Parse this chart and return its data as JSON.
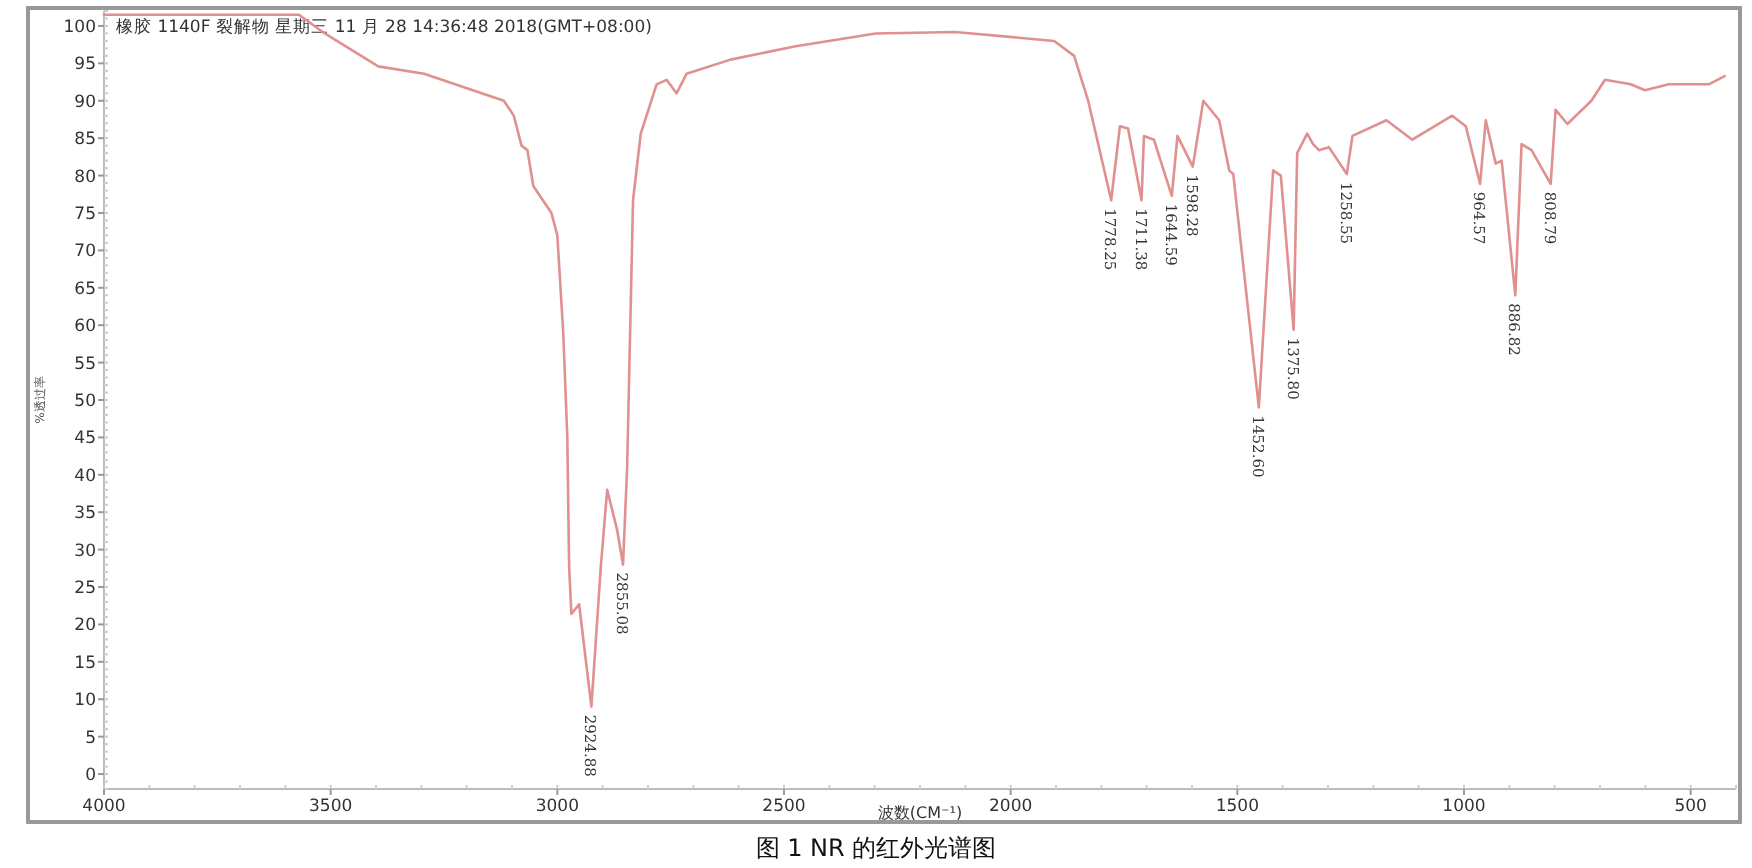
{
  "chart_data": {
    "type": "line",
    "title": "图 1 NR 的红外光谱图",
    "subtitle": "橡胶 1140F 裂解物 星期三 11 月 28 14:36:48 2018(GMT+08:00)",
    "xlabel": "波数(CM⁻¹)",
    "ylabel": "%透过率",
    "xlim": [
      4000,
      400
    ],
    "xticks": [
      4000,
      3500,
      3000,
      2500,
      2000,
      1500,
      1000,
      500
    ],
    "ylim": [
      -2,
      102
    ],
    "yticks": [
      0,
      5,
      10,
      15,
      20,
      25,
      30,
      35,
      40,
      45,
      50,
      55,
      60,
      65,
      70,
      75,
      80,
      85,
      90,
      95,
      100
    ],
    "grid": false,
    "marker": "none",
    "line_style": "solid",
    "series": [
      {
        "color": "#e0908f",
        "x": [
          4000,
          3570,
          3513,
          3395,
          3294,
          3118,
          3096,
          3079,
          3066,
          3053,
          3013,
          3000,
          2987,
          2978,
          2974,
          2969,
          2952,
          2924.88,
          2904,
          2890,
          2868,
          2855.08,
          2846,
          2833,
          2816,
          2781,
          2759,
          2737,
          2715,
          2618,
          2474,
          2298,
          2123,
          1904,
          1860,
          1829,
          1778.25,
          1759,
          1741,
          1711.38,
          1706,
          1684,
          1644.59,
          1632,
          1598.28,
          1575,
          1540,
          1518,
          1509,
          1452.6,
          1421,
          1404,
          1375.8,
          1368,
          1346,
          1333,
          1320,
          1298,
          1258.55,
          1246,
          1171,
          1114,
          1026,
          996,
          964.57,
          952,
          930,
          917,
          886.82,
          873,
          851,
          808.79,
          798,
          772,
          719,
          689,
          632,
          601,
          548,
          460,
          425
        ],
        "values": [
          101.5,
          101.5,
          99,
          94.6,
          93.6,
          90,
          88,
          84,
          83.4,
          78.6,
          75,
          72,
          59,
          45,
          27.8,
          21.4,
          22.7,
          9,
          27.8,
          38,
          32.6,
          28,
          41,
          76.7,
          85.6,
          92.2,
          92.8,
          91,
          93.6,
          95.5,
          97.3,
          99,
          99.2,
          98,
          96,
          90,
          76.7,
          86.6,
          86.3,
          76.7,
          85.3,
          84.8,
          77.3,
          85.3,
          81.2,
          90,
          87.4,
          80.7,
          80.2,
          49,
          80.7,
          80,
          59.4,
          83,
          85.6,
          84.2,
          83.4,
          83.8,
          80.2,
          85.3,
          87.4,
          84.8,
          88,
          86.6,
          78.9,
          87.4,
          81.6,
          82,
          64,
          84.2,
          83.4,
          78.9,
          88.8,
          86.9,
          90,
          92.8,
          92.2,
          91.4,
          92.2,
          92.2,
          93.3
        ]
      }
    ],
    "annotations": [
      {
        "text": "2924.88",
        "x": 2924.88,
        "y": 9
      },
      {
        "text": "2855.08",
        "x": 2855.08,
        "y": 28
      },
      {
        "text": "1778.25",
        "x": 1778.25,
        "y": 76.7
      },
      {
        "text": "1711.38",
        "x": 1711.38,
        "y": 76.7
      },
      {
        "text": "1644.59",
        "x": 1644.59,
        "y": 77.3
      },
      {
        "text": "1598.28",
        "x": 1598.28,
        "y": 81.2
      },
      {
        "text": "1452.60",
        "x": 1452.6,
        "y": 49
      },
      {
        "text": "1375.80",
        "x": 1375.8,
        "y": 59.4
      },
      {
        "text": "1258.55",
        "x": 1258.55,
        "y": 80.2
      },
      {
        "text": "964.57",
        "x": 964.57,
        "y": 78.9
      },
      {
        "text": "886.82",
        "x": 886.82,
        "y": 64
      },
      {
        "text": "808.79",
        "x": 808.79,
        "y": 78.9
      }
    ]
  }
}
